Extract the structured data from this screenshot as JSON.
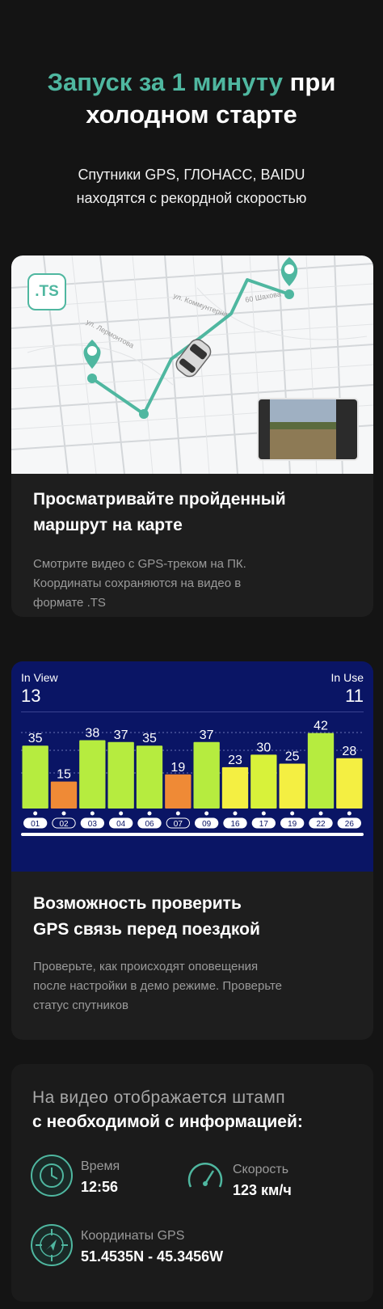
{
  "hero": {
    "title_accent": "Запуск за 1 минуту",
    "title_rest": " при холодном старте",
    "subtitle_line1": "Спутники GPS, ГЛОНАСС, BAIDU",
    "subtitle_line2": "находятся с рекордной скоростью"
  },
  "map_card": {
    "badge": ".TS",
    "street_1": "ул. Лермонтова",
    "street_2": "ул. Коммунтерна",
    "street_3": "60 Шахова",
    "title_line1": "Просматривайте пройденный",
    "title_line2": "маршрут на карте",
    "text_line1": "Смотрите видео с GPS-треком на ПК.",
    "text_line2": "Координаты сохраняются на видео в",
    "text_line3": "формате .TS"
  },
  "gps_card": {
    "in_view_label": "In View",
    "in_view_value": "13",
    "in_use_label": "In Use",
    "in_use_value": "11",
    "title_line1": "Возможность проверить",
    "title_line2": "GPS связь перед поездкой",
    "text_line1": "Проверьте, как происходят оповещения",
    "text_line2": "после настройки в демо режиме. Проверьте",
    "text_line3": "статус спутников"
  },
  "chart_data": {
    "type": "bar",
    "categories": [
      "01",
      "02",
      "03",
      "04",
      "06",
      "07",
      "09",
      "16",
      "17",
      "19",
      "22",
      "26"
    ],
    "values": [
      35,
      15,
      38,
      37,
      35,
      19,
      37,
      23,
      30,
      25,
      42,
      28
    ],
    "bar_colors": [
      "#b6ec3f",
      "#ef8a36",
      "#b6ec3f",
      "#b6ec3f",
      "#b6ec3f",
      "#ef8a36",
      "#b6ec3f",
      "#f4ef42",
      "#d8f23a",
      "#f4ef42",
      "#b6ec3f",
      "#f4ef42"
    ],
    "in_use_flags": [
      true,
      false,
      true,
      true,
      true,
      false,
      true,
      true,
      true,
      true,
      true,
      true
    ],
    "ylim": [
      0,
      45
    ]
  },
  "info_card": {
    "line_dim": "На видео отображается штамп",
    "line_bold": "с необходимой с информацией:",
    "time_label": "Время",
    "time_value": "12:56",
    "speed_label": "Скорость",
    "speed_value": "123 км/ч",
    "coords_label": "Координаты GPS",
    "coords_value": "51.4535N - 45.3456W"
  },
  "colors": {
    "accent": "#4fb7a0",
    "background": "#141414",
    "card": "#1e1e1e",
    "gps_panel": "#0a1565"
  }
}
